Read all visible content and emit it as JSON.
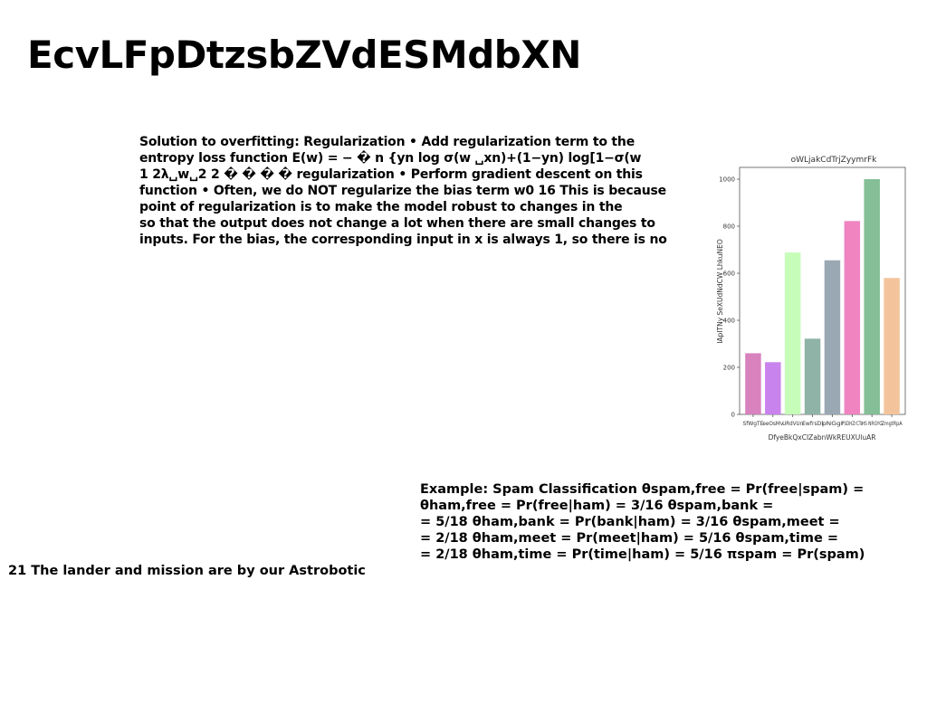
{
  "title": "EcvLFpDtzsbZVdESMdbXN",
  "paragraph1": {
    "lines": [
      "Solution to overfitting: Regularization • Add regularization term to the",
      "entropy loss function E(w) = − � n {yn log σ(w ␣xn)+(1−yn) log[1−σ(w",
      "1 2λ␣w␣2 2 � � � � regularization • Perform gradient descent on this",
      "function • Often, we do NOT regularize the bias term w0 16 This is because",
      "point of regularization is to make the model robust to changes in the",
      "so that the output does not change a lot when there are small changes to",
      "inputs. For the bias, the corresponding input in x is always 1, so there is no"
    ]
  },
  "paragraph2": {
    "lines": [
      "Example: Spam Classification θspam,free = Pr(free|spam) =",
      "θham,free = Pr(free|ham) = 3/16 θspam,bank =",
      "= 5/18 θham,bank = Pr(bank|ham) = 3/16 θspam,meet =",
      "= 2/18 θham,meet = Pr(meet|ham) = 5/16 θspam,time =",
      "= 2/18 θham,time = Pr(time|ham) = 5/16 πspam = Pr(spam)"
    ]
  },
  "footnote": "21 The lander and mission are by our Astrobotic",
  "chart_data": {
    "type": "bar",
    "title": "oWLjakCdTrjZyymrFk",
    "xlabel": "DfyeBkQxCIZabnWkREUXUluAR",
    "ylabel": "IApITNy SeXUdNdCW LhkuNEO",
    "categories": [
      "SfWgTE",
      "eeOsMv",
      "URdVUn",
      "EwfrsDl",
      "pNGgI",
      "PSDHZrCTs",
      "HS NRGYG",
      "ZmgtRpA"
    ],
    "values": [
      260,
      222,
      688,
      322,
      655,
      822,
      1000,
      580
    ],
    "colors": [
      "#d883bd",
      "#c983ed",
      "#c6fdb8",
      "#8fb3a6",
      "#9aa8b4",
      "#ef84c1",
      "#84bf97",
      "#f3c49c"
    ],
    "ylim": [
      0,
      1050
    ],
    "yticks": [
      0,
      200,
      400,
      600,
      800,
      1000
    ],
    "grid": false,
    "legend": "none"
  }
}
